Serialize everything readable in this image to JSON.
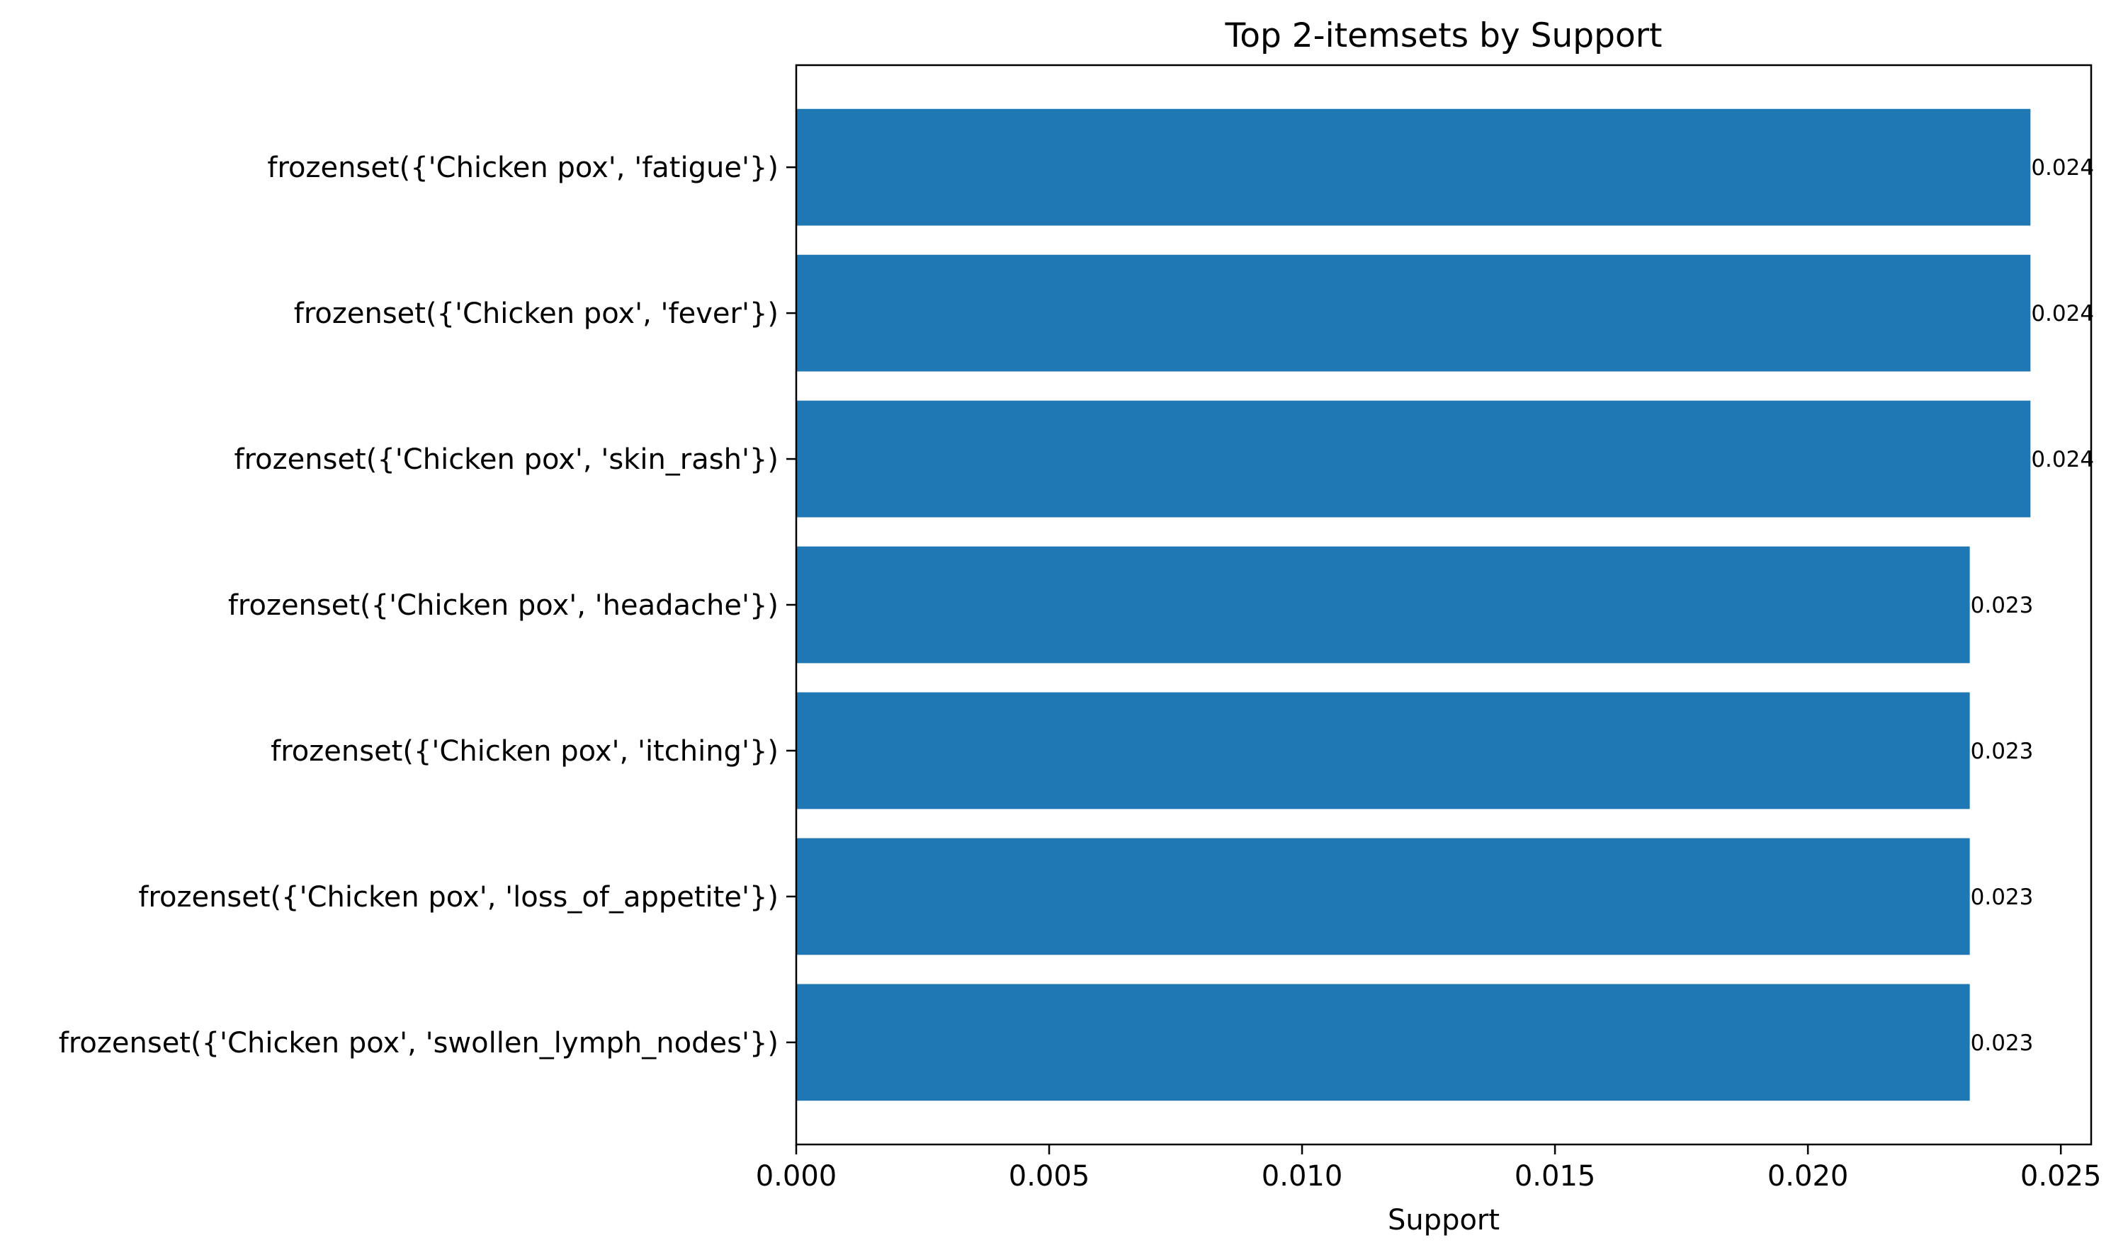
{
  "chart_data": {
    "type": "bar",
    "orientation": "horizontal",
    "title": "Top 2-itemsets by Support",
    "xlabel": "Support",
    "ylabel": "",
    "xlim": [
      0,
      0.0256
    ],
    "xticks": [
      0.0,
      0.005,
      0.01,
      0.015,
      0.02,
      0.025
    ],
    "xtick_labels": [
      "0.000",
      "0.005",
      "0.010",
      "0.015",
      "0.020",
      "0.025"
    ],
    "grid": false,
    "legend": "none",
    "bar_color": "#1f77b4",
    "categories": [
      "frozenset({'Chicken pox', 'fatigue'})",
      "frozenset({'Chicken pox', 'fever'})",
      "frozenset({'Chicken pox', 'skin_rash'})",
      "frozenset({'Chicken pox', 'headache'})",
      "frozenset({'Chicken pox', 'itching'})",
      "frozenset({'Chicken pox', 'loss_of_appetite'})",
      "frozenset({'Chicken pox', 'swollen_lymph_nodes'})"
    ],
    "values": [
      0.0244,
      0.0244,
      0.0244,
      0.0232,
      0.0232,
      0.0232,
      0.0232
    ],
    "value_labels": [
      "0.024",
      "0.024",
      "0.024",
      "0.023",
      "0.023",
      "0.023",
      "0.023"
    ]
  }
}
